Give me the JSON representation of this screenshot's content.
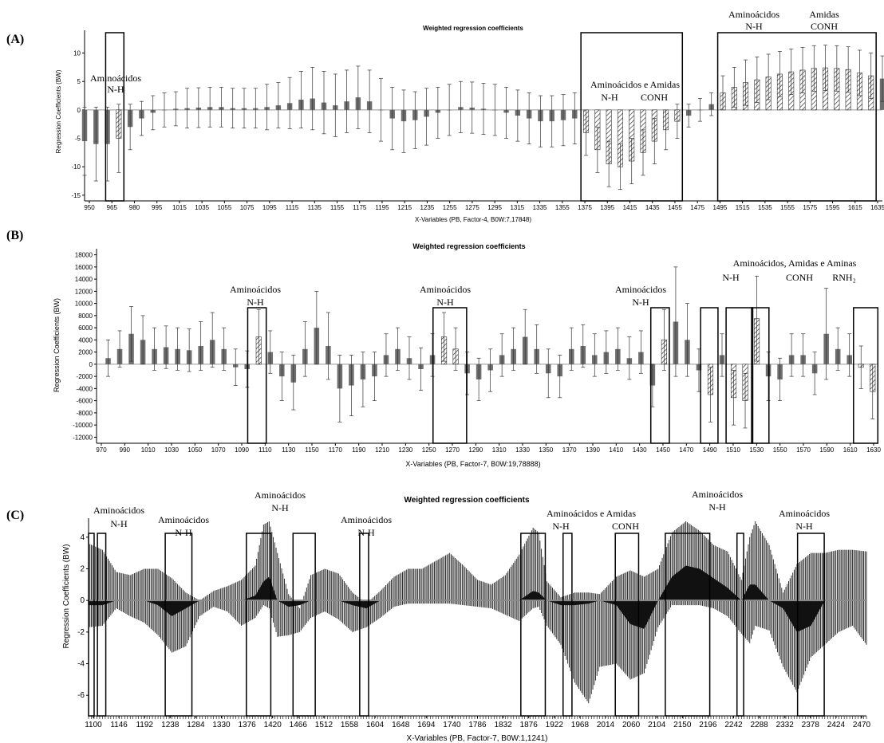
{
  "panels": [
    {
      "letter": "(A)",
      "title": "Weighted regression coefficients",
      "ylabel": "Regression Coefficients (BW)",
      "xlabel": "X-Variables (PB, Factor-4, B0W:7,17848)",
      "yticks": [
        -15,
        -10,
        -5,
        0,
        5,
        10
      ],
      "xticks": [
        "950",
        "965",
        "980",
        "995",
        "1015",
        "1035",
        "1055",
        "1075",
        "1095",
        "1115",
        "1135",
        "1155",
        "1175",
        "1195",
        "1215",
        "1235",
        "1255",
        "1275",
        "1295",
        "1315",
        "1335",
        "1355",
        "1375",
        "1395",
        "1415",
        "1435",
        "1455",
        "1475",
        "1495",
        "1515",
        "1535",
        "1555",
        "1575",
        "1595",
        "1615",
        "1635"
      ],
      "annotations": [
        {
          "text": "Aminoácidos"
        },
        {
          "text": "N-H"
        },
        {
          "text": "Aminoácidos e Amidas"
        },
        {
          "text": "N-H"
        },
        {
          "text": "CONH"
        },
        {
          "text": "Aminoácidos"
        },
        {
          "text": "N-H"
        },
        {
          "text": "Amidas"
        },
        {
          "text": "CONH"
        }
      ]
    },
    {
      "letter": "(B)",
      "title": "Weighted regression coefficients",
      "ylabel": "Regression Coefficients (BW)",
      "xlabel": "X-Variables (PB, Factor-7, B0W:19,78888)",
      "yticks": [
        -12000,
        -10000,
        -8000,
        -6000,
        -4000,
        -2000,
        0,
        2000,
        4000,
        6000,
        8000,
        10000,
        12000,
        14000,
        16000,
        18000
      ],
      "xticks": [
        "970",
        "990",
        "1010",
        "1030",
        "1050",
        "1070",
        "1090",
        "1110",
        "1130",
        "1150",
        "1170",
        "1190",
        "1210",
        "1230",
        "1250",
        "1270",
        "1290",
        "1310",
        "1330",
        "1350",
        "1370",
        "1390",
        "1410",
        "1430",
        "1450",
        "1470",
        "1490",
        "1510",
        "1530",
        "1550",
        "1570",
        "1590",
        "1610",
        "1630"
      ],
      "annotations": [
        {
          "text": "Aminoácidos"
        },
        {
          "text": "N-H"
        },
        {
          "text": "Aminoácidos"
        },
        {
          "text": "N-H"
        },
        {
          "text": "Aminoácidos"
        },
        {
          "text": "N-H"
        },
        {
          "text": "Aminoácidos, Amidas e Aminas"
        },
        {
          "text": "N-H"
        },
        {
          "text": "CONH"
        },
        {
          "text": "RNH₂"
        }
      ]
    },
    {
      "letter": "(C)",
      "title": "Weighted regression coefficients",
      "ylabel": "Regression Coefficients (BW)",
      "xlabel": "X-Variables (PB, Factor-7, B0W:1,1241)",
      "yticks": [
        -6,
        -4,
        -2,
        0,
        2,
        4
      ],
      "xticks": [
        "1100",
        "1146",
        "1192",
        "1238",
        "1284",
        "1330",
        "1376",
        "1420",
        "1466",
        "1512",
        "1558",
        "1604",
        "1648",
        "1694",
        "1740",
        "1786",
        "1832",
        "1876",
        "1922",
        "1968",
        "2014",
        "2060",
        "2104",
        "2150",
        "2196",
        "2242",
        "2288",
        "2332",
        "2378",
        "2424",
        "2470"
      ],
      "annotations": [
        {
          "text": "Aminoácidos"
        },
        {
          "text": "N-H"
        },
        {
          "text": "Aminoácidos"
        },
        {
          "text": "N-H"
        },
        {
          "text": "Aminoácidos"
        },
        {
          "text": "N-H"
        },
        {
          "text": "Aminoácidos"
        },
        {
          "text": "N-H"
        },
        {
          "text": "Aminoácidos e Amidas"
        },
        {
          "text": "N-H"
        },
        {
          "text": "CONH"
        },
        {
          "text": "Aminoácidos"
        },
        {
          "text": "N-H"
        },
        {
          "text": "Aminoácidos"
        },
        {
          "text": "N-H"
        }
      ]
    }
  ],
  "chart_data": [
    {
      "type": "bar",
      "title": "Weighted regression coefficients",
      "xlabel": "X-Variables (PB, Factor-4, B0W:7,17848)",
      "ylabel": "Regression Coefficients (BW)",
      "ylim": [
        -16,
        14
      ],
      "xlim": [
        950,
        1650
      ],
      "grid": false,
      "x": [
        950,
        960,
        970,
        980,
        990,
        1000,
        1010,
        1020,
        1030,
        1040,
        1050,
        1060,
        1070,
        1080,
        1090,
        1100,
        1110,
        1120,
        1130,
        1140,
        1150,
        1160,
        1170,
        1180,
        1190,
        1200,
        1210,
        1220,
        1230,
        1240,
        1250,
        1260,
        1270,
        1280,
        1290,
        1300,
        1310,
        1320,
        1330,
        1340,
        1350,
        1360,
        1370,
        1380,
        1390,
        1400,
        1410,
        1420,
        1430,
        1440,
        1450,
        1460,
        1470,
        1480,
        1490,
        1500,
        1510,
        1520,
        1530,
        1540,
        1550,
        1560,
        1570,
        1580,
        1590,
        1600,
        1610,
        1620,
        1630,
        1640,
        1650
      ],
      "values": [
        -5.5,
        -6,
        -6,
        -5,
        -3,
        -1.5,
        -0.5,
        0,
        0.2,
        0.3,
        0.4,
        0.5,
        0.5,
        0.3,
        0.3,
        0.3,
        0.5,
        0.8,
        1.2,
        1.8,
        2,
        1.3,
        0.8,
        1.5,
        2.2,
        1.5,
        0,
        -1.5,
        -2,
        -1.8,
        -1.2,
        -0.5,
        0,
        0.5,
        0.4,
        0.2,
        0,
        -0.5,
        -1,
        -1.5,
        -2,
        -2,
        -1.8,
        -1.5,
        -4,
        -7,
        -9.5,
        -10,
        -9,
        -7.5,
        -5.5,
        -3.5,
        -2,
        -1,
        0,
        1,
        3,
        4,
        4.8,
        5.3,
        5.8,
        6.3,
        6.7,
        7,
        7.3,
        7.4,
        7.3,
        7.1,
        6.5,
        6,
        5.5
      ],
      "errors": [
        6,
        6.5,
        6.5,
        6,
        4,
        3,
        3,
        3,
        3,
        3.5,
        3.5,
        3.5,
        3.5,
        3.5,
        3.5,
        3.5,
        4,
        4,
        4.5,
        5,
        5.5,
        5.5,
        5.5,
        5.5,
        5.5,
        5.5,
        5.5,
        5.5,
        5.5,
        5,
        5,
        4.5,
        4.5,
        4.5,
        4.5,
        4.5,
        4.5,
        4.5,
        4.5,
        4.5,
        4.5,
        4.5,
        4.5,
        4.5,
        4,
        4,
        4,
        4,
        4,
        4,
        4,
        3.5,
        3,
        2,
        2,
        2,
        3,
        3.5,
        4,
        4,
        4,
        4,
        4,
        4,
        4,
        4,
        4,
        4,
        4,
        4,
        4
      ],
      "highlight_ranges": [
        [
          973,
          980
        ],
        [
          1390,
          1470
        ],
        [
          1510,
          1640
        ]
      ],
      "hatched_ranges": [
        [
          973,
          980
        ],
        [
          1390,
          1470
        ],
        [
          1510,
          1640
        ]
      ]
    },
    {
      "type": "bar",
      "title": "Weighted regression coefficients",
      "xlabel": "X-Variables (PB, Factor-7, B0W:19,78888)",
      "ylabel": "Regression Coefficients (BW)",
      "ylim": [
        -13000,
        19000
      ],
      "xlim": [
        960,
        1635
      ],
      "grid": false,
      "x": [
        970,
        980,
        990,
        1000,
        1010,
        1020,
        1030,
        1040,
        1050,
        1060,
        1070,
        1080,
        1090,
        1100,
        1110,
        1120,
        1130,
        1140,
        1150,
        1160,
        1170,
        1180,
        1190,
        1200,
        1210,
        1220,
        1230,
        1240,
        1250,
        1260,
        1270,
        1280,
        1290,
        1300,
        1310,
        1320,
        1330,
        1340,
        1350,
        1360,
        1370,
        1380,
        1390,
        1400,
        1410,
        1420,
        1430,
        1440,
        1450,
        1460,
        1470,
        1480,
        1490,
        1500,
        1510,
        1520,
        1530,
        1540,
        1550,
        1560,
        1570,
        1580,
        1590,
        1600,
        1610,
        1620,
        1630
      ],
      "values": [
        1000,
        2500,
        5000,
        4000,
        2500,
        2800,
        2500,
        2300,
        3000,
        4000,
        2500,
        -500,
        -800,
        4500,
        2000,
        -2000,
        -3000,
        2500,
        6000,
        3000,
        -4000,
        -3500,
        -2500,
        -2000,
        1500,
        2500,
        1000,
        -800,
        1500,
        4500,
        2500,
        -1500,
        -2500,
        -1000,
        1500,
        2500,
        4500,
        2500,
        -1500,
        -2000,
        2500,
        3000,
        1500,
        2000,
        2500,
        1000,
        2000,
        -3500,
        4000,
        7000,
        4000,
        -1000,
        -5000,
        1500,
        -5500,
        -6000,
        7500,
        -2000,
        -2500,
        1500,
        1500,
        -1500,
        5000,
        2500,
        1500,
        -500,
        -4500
      ],
      "errors": [
        3000,
        3000,
        4500,
        4000,
        3500,
        3500,
        3500,
        3500,
        4000,
        4500,
        3500,
        3000,
        3000,
        4500,
        3500,
        4000,
        4500,
        4500,
        6000,
        5500,
        5500,
        5000,
        4500,
        4000,
        3500,
        3500,
        3500,
        3500,
        3500,
        4000,
        3500,
        3500,
        3500,
        3500,
        3500,
        3500,
        4500,
        4000,
        4000,
        3500,
        3500,
        3500,
        3500,
        3500,
        3500,
        3500,
        3500,
        3500,
        5000,
        9000,
        6000,
        3500,
        4500,
        3500,
        4500,
        4500,
        7000,
        4000,
        3500,
        3500,
        3500,
        3500,
        7500,
        3500,
        3500,
        3500,
        4500
      ],
      "highlight_ranges": [
        [
          1095,
          1102
        ],
        [
          1255,
          1275
        ],
        [
          1443,
          1450
        ],
        [
          1486,
          1492
        ],
        [
          1508,
          1522
        ],
        [
          1530,
          1536
        ],
        [
          1618,
          1630
        ]
      ],
      "hatched_ranges": [
        [
          1095,
          1102
        ],
        [
          1255,
          1275
        ],
        [
          1443,
          1450
        ],
        [
          1486,
          1492
        ],
        [
          1508,
          1522
        ],
        [
          1530,
          1536
        ],
        [
          1618,
          1630
        ]
      ]
    },
    {
      "type": "area",
      "title": "Weighted regression coefficients",
      "xlabel": "X-Variables (PB, Factor-7, B0W:1,1241)",
      "ylabel": "Regression Coefficients (BW)",
      "ylim": [
        -7.3,
        5.2
      ],
      "xlim": [
        1100,
        2500
      ],
      "grid": false,
      "x": [
        1100,
        1125,
        1150,
        1175,
        1200,
        1225,
        1250,
        1275,
        1300,
        1325,
        1350,
        1375,
        1400,
        1415,
        1425,
        1440,
        1460,
        1480,
        1500,
        1525,
        1550,
        1575,
        1600,
        1625,
        1650,
        1675,
        1700,
        1725,
        1750,
        1775,
        1800,
        1825,
        1850,
        1875,
        1900,
        1910,
        1925,
        1950,
        1975,
        2000,
        2020,
        2050,
        2075,
        2100,
        2125,
        2150,
        2175,
        2200,
        2225,
        2250,
        2275,
        2290,
        2300,
        2325,
        2350,
        2375,
        2400,
        2425,
        2450,
        2475,
        2500
      ],
      "upper": [
        3.6,
        3.2,
        1.8,
        1.6,
        2.0,
        2.0,
        1.4,
        0.5,
        0.0,
        0.6,
        0.9,
        1.3,
        2.2,
        4.8,
        5.0,
        3.0,
        0.4,
        -0.5,
        1.6,
        2.0,
        1.7,
        0.5,
        -0.2,
        0.6,
        1.5,
        2.0,
        2.0,
        2.5,
        3.0,
        2.2,
        1.3,
        1.0,
        1.6,
        2.9,
        4.6,
        4.3,
        1.2,
        0.2,
        0.5,
        0.5,
        0.4,
        1.5,
        1.9,
        1.5,
        2.0,
        4.3,
        5.0,
        4.4,
        3.5,
        3.1,
        1.3,
        4.0,
        5.0,
        3.5,
        0.5,
        2.3,
        3.0,
        3.0,
        3.2,
        3.2,
        3.1
      ],
      "lower": [
        -1.7,
        -1.6,
        -0.5,
        -1.0,
        -1.4,
        -2.2,
        -3.3,
        -2.9,
        -1.0,
        -0.4,
        -0.7,
        -1.6,
        -1.1,
        -0.3,
        -0.5,
        -2.3,
        -2.2,
        -2.0,
        -1.1,
        -0.7,
        -1.2,
        -2.0,
        -1.7,
        -1.1,
        -0.4,
        -0.2,
        -0.2,
        -0.2,
        -0.2,
        -0.3,
        -0.4,
        -0.5,
        -0.9,
        -1.3,
        -0.5,
        -0.4,
        -1.6,
        -2.8,
        -5.2,
        -6.5,
        -4.2,
        -4.0,
        -5.0,
        -4.6,
        -1.7,
        -0.3,
        -0.3,
        -0.3,
        -0.5,
        -1.0,
        -2.1,
        -2.7,
        -1.6,
        -1.9,
        -4.2,
        -5.8,
        -3.6,
        -2.8,
        -2.0,
        -1.6,
        -2.8
      ],
      "coef": [
        -0.3,
        -0.3,
        0.0,
        0.0,
        0.0,
        -0.3,
        -1.0,
        -0.5,
        0.0,
        0.0,
        0.0,
        0.0,
        0.3,
        1.2,
        1.5,
        0.0,
        -0.4,
        -0.3,
        0.0,
        0.0,
        0.0,
        -0.3,
        -0.5,
        0.0,
        0.0,
        0.0,
        0.0,
        0.0,
        0.0,
        0.0,
        0.0,
        0.0,
        0.0,
        0.0,
        0.6,
        0.5,
        0.0,
        -0.3,
        -0.3,
        -0.2,
        0.0,
        -0.3,
        -1.5,
        -1.8,
        0.0,
        1.5,
        2.2,
        2.0,
        1.4,
        0.8,
        0.0,
        1.0,
        1.0,
        0.0,
        -0.5,
        -2.0,
        -1.6,
        0.0,
        0.0,
        0.0,
        0.0
      ],
      "highlight_ranges": [
        [
          1100,
          1110
        ],
        [
          1116,
          1131
        ],
        [
          1238,
          1286
        ],
        [
          1384,
          1428
        ],
        [
          1468,
          1508
        ],
        [
          1588,
          1604
        ],
        [
          1878,
          1922
        ],
        [
          1954,
          1970
        ],
        [
          2048,
          2090
        ],
        [
          2138,
          2218
        ],
        [
          2267,
          2279
        ],
        [
          2376,
          2424
        ]
      ]
    }
  ]
}
